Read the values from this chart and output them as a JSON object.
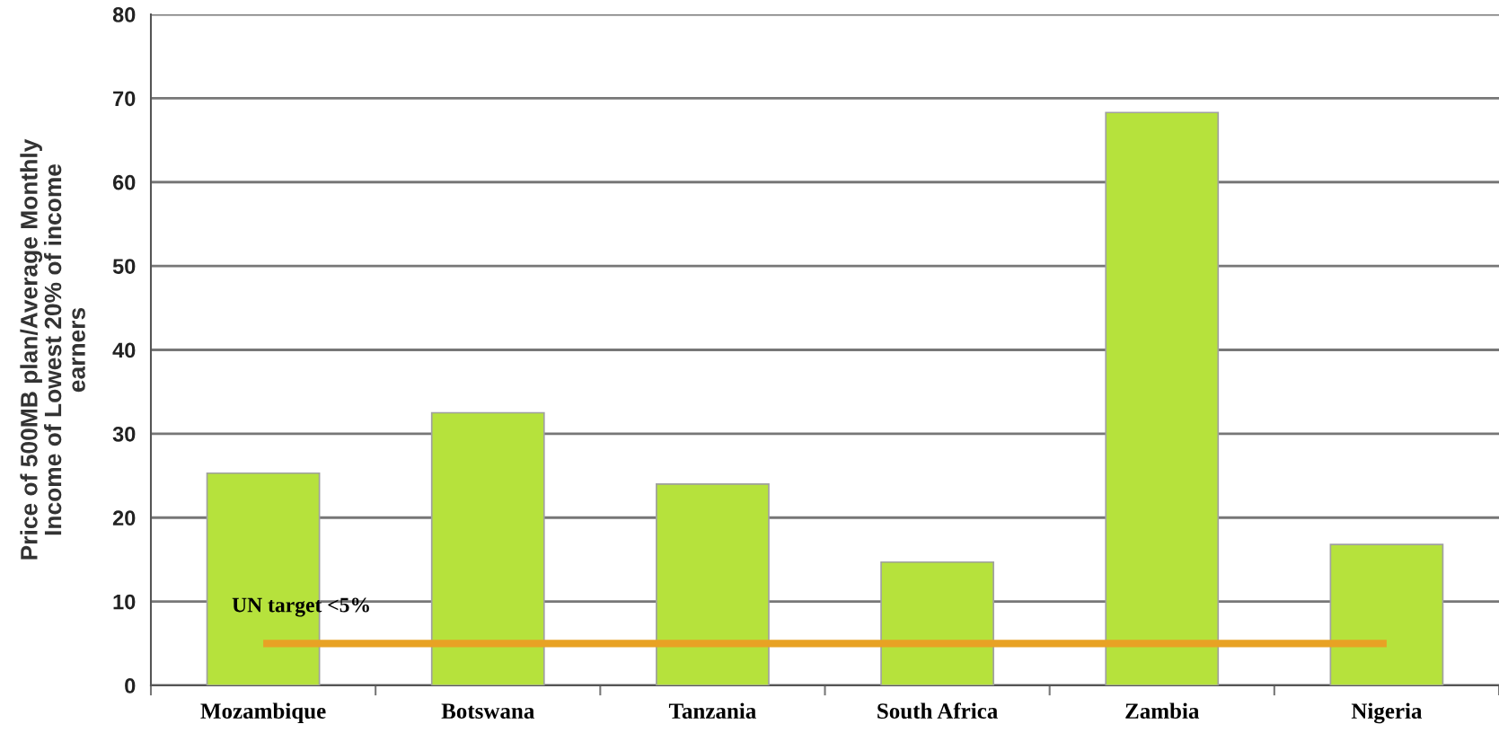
{
  "chart_data": {
    "type": "bar",
    "ylabel": "Price of 500MB plan/Average Monthly\nIncome of Lowest 20% of income\nearners",
    "categories": [
      "Mozambique",
      "Botswana",
      "Tanzania",
      "South Africa",
      "Zambia",
      "Nigeria"
    ],
    "values": [
      25.3,
      32.5,
      24.0,
      14.7,
      68.3,
      16.8
    ],
    "color": "#b6e23c",
    "ylim": [
      0,
      80
    ],
    "yticks": [
      0,
      10,
      20,
      30,
      40,
      50,
      60,
      70,
      80
    ],
    "grid": "y",
    "ref_lines": [
      {
        "axis": "y",
        "value": 5,
        "label": "UN target <5%",
        "color": "#e8a224",
        "line_style": "solid"
      }
    ]
  }
}
